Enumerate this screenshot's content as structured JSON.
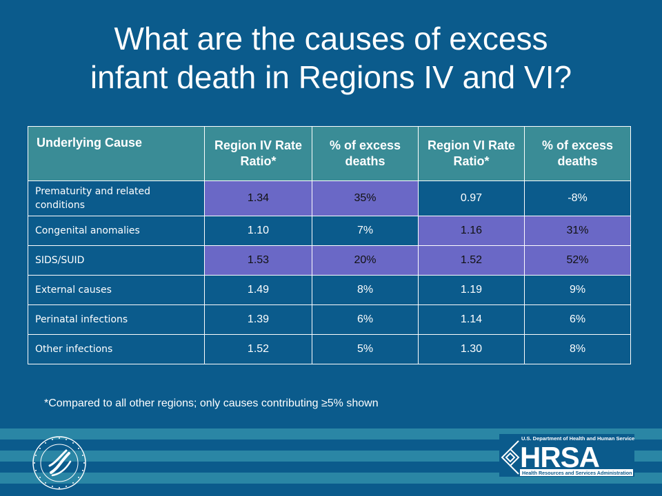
{
  "title": {
    "line1": "What are the causes of excess",
    "line2": "infant death in Regions IV and VI?"
  },
  "table": {
    "headers": [
      "Underlying Cause",
      "Region IV Rate Ratio*",
      "% of excess deaths",
      "Region VI Rate Ratio*",
      "% of excess deaths"
    ],
    "rows": [
      {
        "cause": "Prematurity and related conditions",
        "r4_ratio": "1.34",
        "r4_pct": "35%",
        "r6_ratio": "0.97",
        "r6_pct": "-8%"
      },
      {
        "cause": "Congenital anomalies",
        "r4_ratio": "1.10",
        "r4_pct": "7%",
        "r6_ratio": "1.16",
        "r6_pct": "31%"
      },
      {
        "cause": "SIDS/SUID",
        "r4_ratio": "1.53",
        "r4_pct": "20%",
        "r6_ratio": "1.52",
        "r6_pct": "52%"
      },
      {
        "cause": "External causes",
        "r4_ratio": "1.49",
        "r4_pct": "8%",
        "r6_ratio": "1.19",
        "r6_pct": "9%"
      },
      {
        "cause": "Perinatal infections",
        "r4_ratio": "1.39",
        "r4_pct": "6%",
        "r6_ratio": "1.14",
        "r6_pct": "6%"
      },
      {
        "cause": "Other infections",
        "r4_ratio": "1.52",
        "r4_pct": "5%",
        "r6_ratio": "1.30",
        "r6_pct": "8%"
      }
    ]
  },
  "footnote": "*Compared to all other regions; only causes contributing ≥5% shown",
  "logos": {
    "hhs_seal": "hhs-seal-icon",
    "hrsa_top": "U.S. Department of Health and Human Services",
    "hrsa_name": "HRSA",
    "hrsa_bottom": "Health Resources and Services Administration"
  },
  "colors": {
    "background": "#0b5b8c",
    "header": "#3a8c96",
    "highlight": "#6a68c6",
    "stripe": "#2a86a5"
  }
}
